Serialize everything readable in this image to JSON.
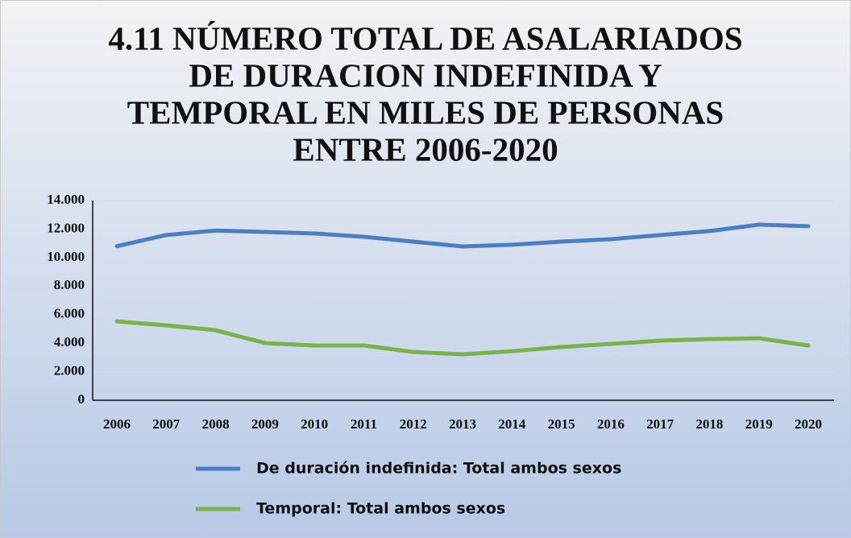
{
  "chart_data": {
    "type": "line",
    "title": [
      "4.11 NÚMERO TOTAL DE ASALARIADOS",
      "DE DURACION INDEFINIDA Y",
      "TEMPORAL EN MILES DE PERSONAS",
      "ENTRE 2006-2020"
    ],
    "categories": [
      "2006",
      "2007",
      "2008",
      "2009",
      "2010",
      "2011",
      "2012",
      "2013",
      "2014",
      "2015",
      "2016",
      "2017",
      "2018",
      "2019",
      "2020"
    ],
    "series": [
      {
        "name": "De duración indefinida: Total ambos sexos",
        "color": "#4a7fc1",
        "values": [
          10800,
          11580,
          11900,
          11800,
          11690,
          11460,
          11120,
          10780,
          10900,
          11120,
          11290,
          11580,
          11860,
          12310,
          12200
        ]
      },
      {
        "name": "Temporal: Total ambos sexos",
        "color": "#7cb24a",
        "values": [
          5530,
          5250,
          4910,
          4010,
          3840,
          3840,
          3390,
          3220,
          3440,
          3730,
          3950,
          4180,
          4290,
          4350,
          3840
        ]
      }
    ],
    "ylim": [
      0,
      14000
    ],
    "yticks": [
      0,
      {
        "value": 2000,
        "label": "2.000"
      },
      {
        "value": 4000,
        "label": "4.000"
      },
      {
        "value": 6000,
        "label": "6.000"
      },
      {
        "value": 8000,
        "label": "8.000"
      },
      {
        "value": 10000,
        "label": "10.000"
      },
      {
        "value": 12000,
        "label": "12.000"
      },
      {
        "value": 14000,
        "label": "14.000"
      }
    ],
    "grid": true,
    "legend": "bottom"
  }
}
